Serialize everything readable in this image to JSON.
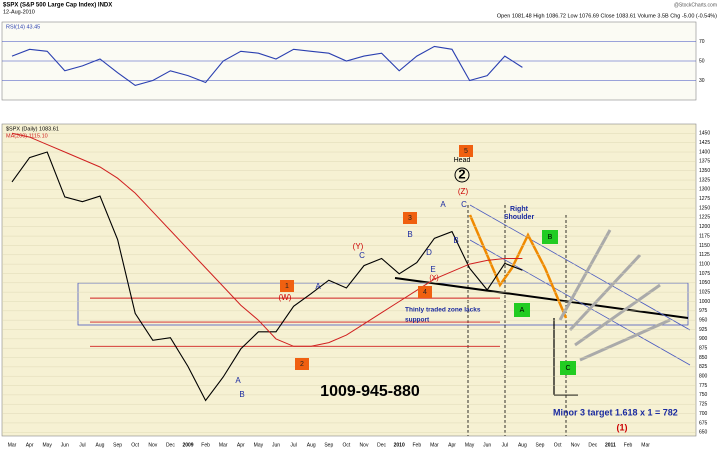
{
  "header": {
    "title": "$SPX (S&P 500 Large Cap Index) INDX",
    "date": "12-Aug-2010",
    "quote": "Open 1081.48  High 1086.72  Low 1076.69  Close 1083.61  Volume 3.5B  Chg -5.00 (-0.54%)",
    "credit": "@StockCharts.com"
  },
  "chart_data": [
    {
      "type": "line",
      "ylim": [
        10,
        90
      ],
      "yticks": [
        30,
        50,
        70
      ],
      "grid": true,
      "categories": [
        "Mar",
        "Apr",
        "May",
        "Jun",
        "Jul",
        "Aug",
        "Sep",
        "Oct",
        "Nov",
        "Dec",
        "2009",
        "Feb",
        "Mar",
        "Apr",
        "May",
        "Jun",
        "Jul",
        "Aug",
        "Sep",
        "Oct",
        "Nov",
        "Dec",
        "2010",
        "Feb",
        "Mar",
        "Apr",
        "May",
        "Jun",
        "Jul",
        "Aug",
        "Sep",
        "Oct",
        "Nov",
        "Dec",
        "2011",
        "Feb",
        "Mar"
      ],
      "series": [
        {
          "name": "RSI(14) 43.45",
          "color": "#2a3fb0",
          "values": [
            55,
            62,
            60,
            40,
            45,
            52,
            38,
            25,
            30,
            40,
            35,
            28,
            50,
            60,
            58,
            52,
            62,
            60,
            58,
            50,
            55,
            58,
            40,
            55,
            65,
            62,
            30,
            35,
            55,
            43.45,
            null,
            null,
            null,
            null,
            null,
            null,
            null
          ]
        }
      ]
    },
    {
      "type": "line",
      "ylim": [
        640,
        1475
      ],
      "yticks": [
        650,
        675,
        700,
        725,
        750,
        775,
        800,
        825,
        850,
        875,
        900,
        925,
        950,
        975,
        1000,
        1025,
        1050,
        1075,
        1100,
        1125,
        1150,
        1175,
        1200,
        1225,
        1250,
        1275,
        1300,
        1325,
        1350,
        1375,
        1400,
        1425,
        1450
      ],
      "grid": true,
      "categories": [
        "Mar",
        "Apr",
        "May",
        "Jun",
        "Jul",
        "Aug",
        "Sep",
        "Oct",
        "Nov",
        "Dec",
        "2009",
        "Feb",
        "Mar",
        "Apr",
        "May",
        "Jun",
        "Jul",
        "Aug",
        "Sep",
        "Oct",
        "Nov",
        "Dec",
        "2010",
        "Feb",
        "Mar",
        "Apr",
        "May",
        "Jun",
        "Jul",
        "Aug",
        "Sep",
        "Oct",
        "Nov",
        "Dec",
        "2011",
        "Feb",
        "Mar"
      ],
      "series": [
        {
          "name": "$SPX (Daily) 1083.61",
          "color": "#000000",
          "values": [
            1320,
            1385,
            1400,
            1280,
            1267,
            1282,
            1166,
            968,
            896,
            903,
            826,
            735,
            798,
            873,
            919,
            919,
            987,
            1021,
            1057,
            1036,
            1096,
            1115,
            1074,
            1104,
            1169,
            1187,
            1089,
            1031,
            1102,
            1083.61,
            null,
            null,
            null,
            null,
            null,
            null,
            null
          ]
        },
        {
          "name": "MA(200) 1115.10",
          "color": "#d02020",
          "values": [
            1450,
            1440,
            1420,
            1400,
            1380,
            1360,
            1330,
            1290,
            1240,
            1190,
            1140,
            1090,
            1040,
            990,
            950,
            900,
            880,
            880,
            890,
            910,
            940,
            970,
            1000,
            1030,
            1060,
            1080,
            1100,
            1110,
            1115,
            1115.1,
            null,
            null,
            null,
            null,
            null,
            null,
            null
          ]
        }
      ],
      "levels": [
        1009,
        945,
        880
      ],
      "annotations": [
        "1009-945-880",
        "Thinly traded zone lacks",
        "support",
        "Minor 3 target 1.618 x 1 = 782",
        "Right",
        "Shoulder",
        "Head",
        "(Z)",
        "(Y)",
        "(W)",
        "(X)",
        "(1)",
        "2",
        "A",
        "B",
        "A",
        "C",
        "B",
        "A",
        "B",
        "C",
        "D",
        "E"
      ],
      "orange_boxes": [
        "1",
        "2",
        "3",
        "4",
        "5"
      ],
      "green_boxes": [
        "A",
        "B",
        "C"
      ]
    }
  ]
}
